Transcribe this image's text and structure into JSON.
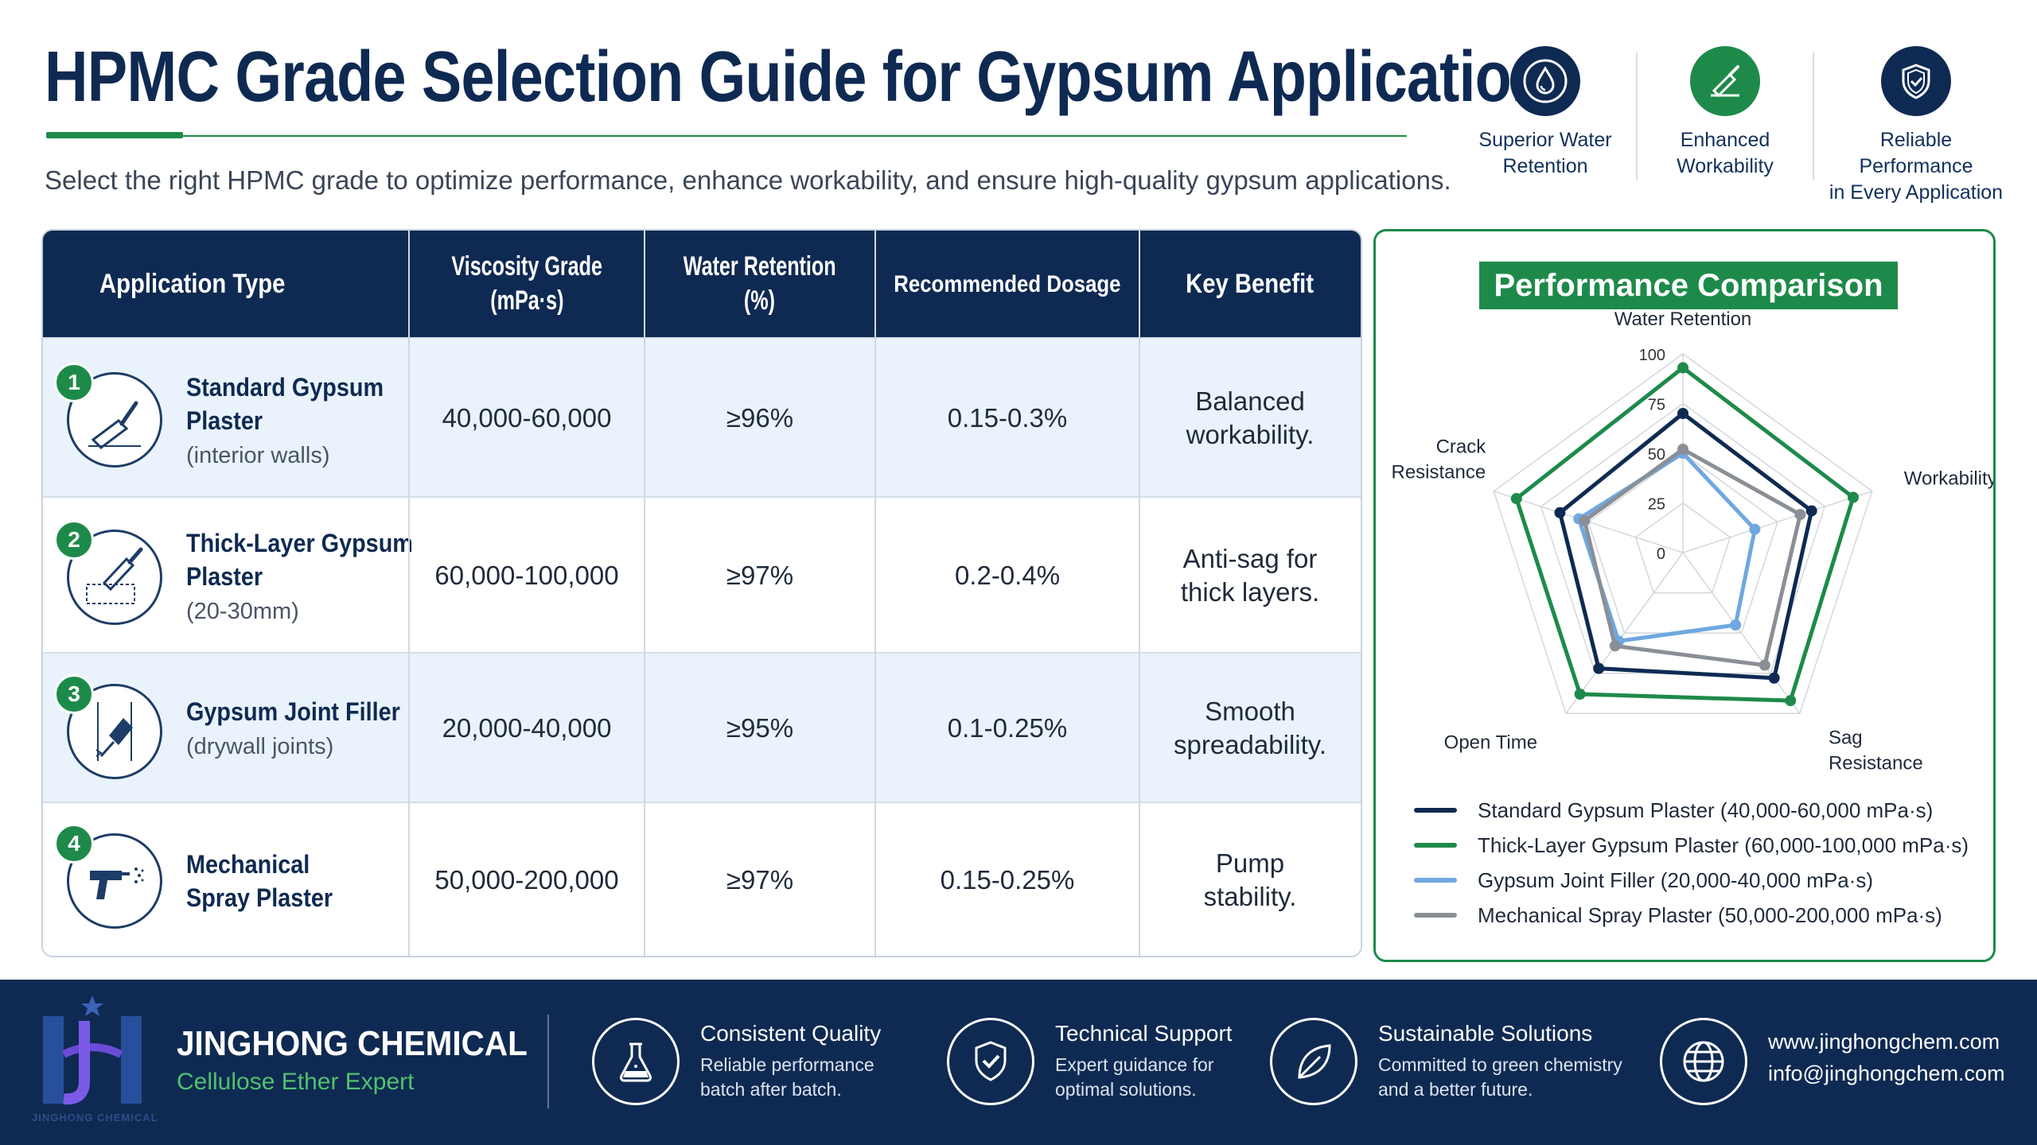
{
  "header": {
    "title": "HPMC Grade Selection Guide for Gypsum Applications",
    "subtitle": "Select the right HPMC grade to optimize performance, enhance workability, and ensure high-quality gypsum applications."
  },
  "badges": [
    {
      "line1": "Superior Water",
      "line2": "Retention",
      "icon": "water-drop-icon",
      "color": "#0f2a52"
    },
    {
      "line1": "Enhanced",
      "line2": "Workability",
      "icon": "trowel-icon",
      "color": "#1e8a4a"
    },
    {
      "line1": "Reliable Performance",
      "line2": "in Every Application",
      "icon": "shield-check-icon",
      "color": "#0f2a52"
    }
  ],
  "table": {
    "headers": {
      "app": "Application Type",
      "visc1": "Viscosity Grade",
      "visc2": "(mPa·s)",
      "wr1": "Water Retention",
      "wr2": "(%)",
      "dosage": "Recommended Dosage",
      "benefit": "Key Benefit"
    },
    "rows": [
      {
        "num": "1",
        "name1": "Standard Gypsum",
        "name2": "Plaster",
        "sub": "(interior walls)",
        "viscosity": "40,000-60,000",
        "water": "≥96%",
        "dosage": "0.15-0.3%",
        "benefit1": "Balanced",
        "benefit2": "workability.",
        "icon": "plastering-trowel-icon"
      },
      {
        "num": "2",
        "name1": "Thick-Layer Gypsum",
        "name2": "Plaster",
        "sub": "(20-30mm)",
        "viscosity": "60,000-100,000",
        "water": "≥97%",
        "dosage": "0.2-0.4%",
        "benefit1": "Anti-sag for",
        "benefit2": "thick layers.",
        "icon": "thick-layer-trowel-icon"
      },
      {
        "num": "3",
        "name1": "Gypsum Joint Filler",
        "name2": "",
        "sub": "(drywall joints)",
        "viscosity": "20,000-40,000",
        "water": "≥95%",
        "dosage": "0.1-0.25%",
        "benefit1": "Smooth",
        "benefit2": "spreadability.",
        "icon": "putty-knife-icon"
      },
      {
        "num": "4",
        "name1": "Mechanical",
        "name2": "Spray Plaster",
        "sub": "",
        "viscosity": "50,000-200,000",
        "water": "≥97%",
        "dosage": "0.15-0.25%",
        "benefit1": "Pump",
        "benefit2": "stability.",
        "icon": "spray-gun-icon"
      }
    ]
  },
  "chart_data": {
    "type": "radar",
    "title": "Performance Comparison",
    "axes": [
      "Water Retention",
      "Workability",
      "Sag Resistance",
      "Open Time",
      "Crack Resistance"
    ],
    "axis_label_lines": [
      [
        "Water Retention"
      ],
      [
        "Workability"
      ],
      [
        "Sag",
        "Resistance"
      ],
      [
        "Open Time"
      ],
      [
        "Crack",
        "Resistance"
      ]
    ],
    "range": [
      0,
      100
    ],
    "ticks": [
      0,
      25,
      50,
      75,
      100
    ],
    "series": [
      {
        "name": "Standard Gypsum Plaster (40,000-60,000 mPa·s)",
        "color": "#0f2a52",
        "values": [
          70,
          68,
          78,
          72,
          65
        ]
      },
      {
        "name": "Thick-Layer Gypsum Plaster (60,000-100,000 mPa·s)",
        "color": "#1e8a4a",
        "values": [
          93,
          90,
          92,
          88,
          88
        ]
      },
      {
        "name": "Gypsum Joint Filler (20,000-40,000 mPa·s)",
        "color": "#6fa8e0",
        "values": [
          50,
          38,
          45,
          55,
          55
        ]
      },
      {
        "name": "Mechanical Spray Plaster (50,000-200,000 mPa·s)",
        "color": "#8a8f96",
        "values": [
          52,
          62,
          70,
          58,
          52
        ]
      }
    ],
    "legend_position": "bottom"
  },
  "footer": {
    "brand_name": "JINGHONG CHEMICAL",
    "brand_tag": "Cellulose Ether Expert",
    "logo_text": "JINGHONG CHEMICAL",
    "features": [
      {
        "title": "Consistent Quality",
        "line1": "Reliable performance",
        "line2": "batch after batch.",
        "icon": "flask-icon"
      },
      {
        "title": "Technical Support",
        "line1": "Expert guidance for",
        "line2": "optimal solutions.",
        "icon": "shield-check-icon"
      },
      {
        "title": "Sustainable Solutions",
        "line1": "Committed to green chemistry",
        "line2": "and a better future.",
        "icon": "leaf-icon"
      }
    ],
    "website": "www.jinghongchem.com",
    "email": "info@jinghongchem.com",
    "contact_icon": "globe-icon"
  }
}
